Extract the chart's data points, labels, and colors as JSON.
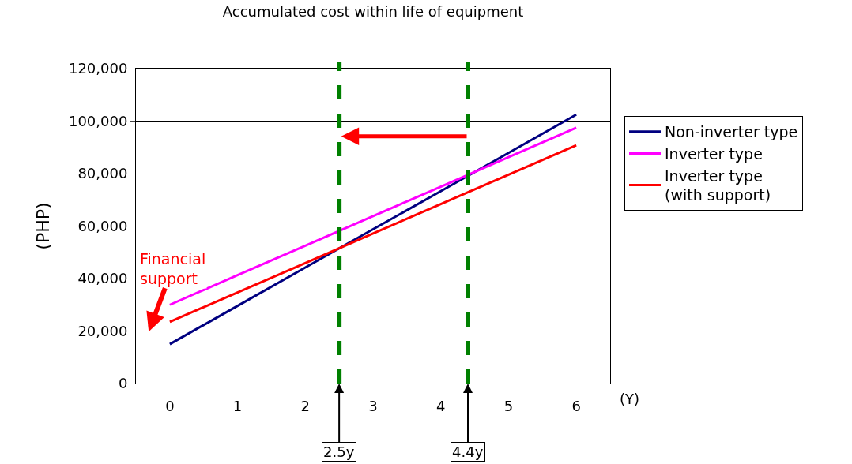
{
  "chart_data": {
    "type": "line",
    "title": "Accumulated cost within life of equipment",
    "xlabel": "(Y)",
    "ylabel": "(PHP)",
    "x": [
      0,
      1,
      2,
      3,
      4,
      5,
      6
    ],
    "series": [
      {
        "name": "Non-inverter type",
        "color": "#000080",
        "values": [
          15000,
          29600,
          44200,
          58800,
          73300,
          87900,
          102500
        ]
      },
      {
        "name": "Inverter type",
        "color": "#ff00ff",
        "values": [
          30000,
          41300,
          52500,
          63800,
          75000,
          86300,
          97500
        ]
      },
      {
        "name": "Inverter type\n(with support)",
        "color": "#ff0000",
        "values": [
          23500,
          34700,
          45900,
          57200,
          68400,
          79600,
          90800
        ]
      }
    ],
    "xlim": [
      -0.5,
      6.5
    ],
    "xticks": [
      0,
      1,
      2,
      3,
      4,
      5,
      6
    ],
    "ylim": [
      0,
      120000
    ],
    "yticks": [
      {
        "value": 0,
        "label": "0"
      },
      {
        "value": 20000,
        "label": "20,000"
      },
      {
        "value": 40000,
        "label": "40,000"
      },
      {
        "value": 60000,
        "label": "60,000"
      },
      {
        "value": 80000,
        "label": "80,000"
      },
      {
        "value": 100000,
        "label": "100,000"
      },
      {
        "value": 120000,
        "label": "120,000"
      }
    ],
    "ref_lines": [
      {
        "axis": "x",
        "value": 2.5,
        "label": "2.5y",
        "color": "#008000",
        "line_style": "dashed"
      },
      {
        "axis": "x",
        "value": 4.4,
        "label": "4.4y",
        "color": "#008000",
        "line_style": "dashed"
      }
    ],
    "annotations": [
      "Financial\nsupport"
    ],
    "grid": "y",
    "legend": "right",
    "marker": "none",
    "line_style": "solid"
  }
}
